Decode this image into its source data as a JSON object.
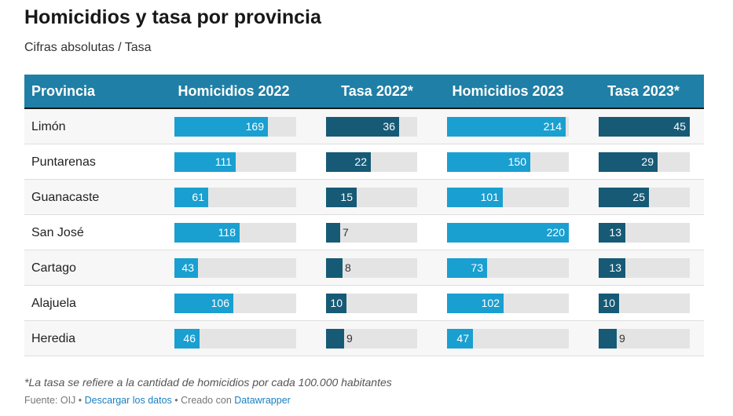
{
  "header": {
    "title": "Homicidios y tasa por provincia",
    "subtitle": "Cifras absolutas / Tasa"
  },
  "colors": {
    "header_bg": "#1f7fa6",
    "homicidios_bar": "#1a9fd1",
    "tasa_bar": "#165a76",
    "track": "#e4e4e4"
  },
  "chart_data": {
    "type": "table",
    "columns": [
      "Provincia",
      "Homicidios 2022",
      "Tasa 2022*",
      "Homicidios 2023",
      "Tasa 2023*"
    ],
    "rows": [
      {
        "provincia": "Limón",
        "values": [
          169,
          36,
          214,
          45
        ]
      },
      {
        "provincia": "Puntarenas",
        "values": [
          111,
          22,
          150,
          29
        ]
      },
      {
        "provincia": "Guanacaste",
        "values": [
          61,
          15,
          101,
          25
        ]
      },
      {
        "provincia": "San José",
        "values": [
          118,
          7,
          220,
          13
        ]
      },
      {
        "provincia": "Cartago",
        "values": [
          43,
          8,
          73,
          13
        ]
      },
      {
        "provincia": "Alajuela",
        "values": [
          106,
          10,
          102,
          10
        ]
      },
      {
        "provincia": "Heredia",
        "values": [
          46,
          9,
          47,
          9
        ]
      }
    ],
    "column_max": [
      220,
      45,
      220,
      45
    ]
  },
  "footer": {
    "note": "*La tasa se refiere a la cantidad de homicidios por cada 100.000 habitantes",
    "source_label": "Fuente: OIJ",
    "separator": " • ",
    "download_link": "Descargar los datos",
    "created_label": "Creado con",
    "created_link": "Datawrapper"
  }
}
